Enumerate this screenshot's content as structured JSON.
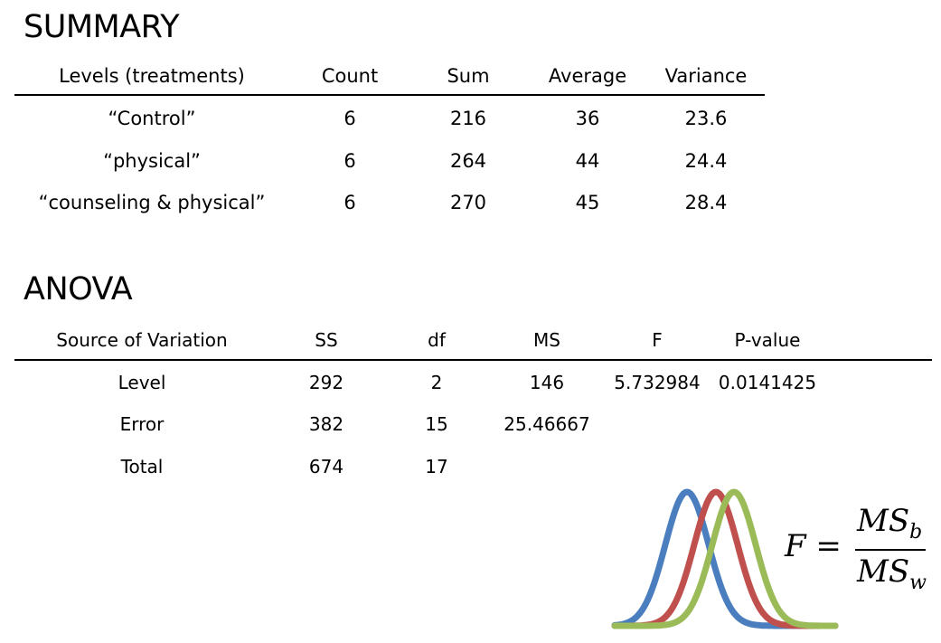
{
  "summary": {
    "title": "SUMMARY",
    "headers": [
      "Levels (treatments)",
      "Count",
      "Sum",
      "Average",
      "Variance"
    ],
    "rows": [
      [
        "“Control”",
        "6",
        "216",
        "36",
        "23.6"
      ],
      [
        "“physical”",
        "6",
        "264",
        "44",
        "24.4"
      ],
      [
        "“counseling & physical”",
        "6",
        "270",
        "45",
        "28.4"
      ]
    ]
  },
  "anova": {
    "title": "ANOVA",
    "headers": [
      "Source of Variation",
      "SS",
      "df",
      "MS",
      "F",
      "P-value"
    ],
    "rows": [
      [
        "Level",
        "292",
        "2",
        "146",
        "5.732984",
        "0.0141425"
      ],
      [
        "Error",
        "382",
        "15",
        "25.46667",
        "",
        ""
      ],
      [
        "Total",
        "674",
        "17",
        "",
        "",
        ""
      ]
    ]
  },
  "formula": {
    "lhs": "F =",
    "num_base": "MS",
    "num_sub": "b",
    "den_base": "MS",
    "den_sub": "w"
  },
  "curve_colors": [
    "#4a7ebf",
    "#c0504d",
    "#9bbb59"
  ]
}
